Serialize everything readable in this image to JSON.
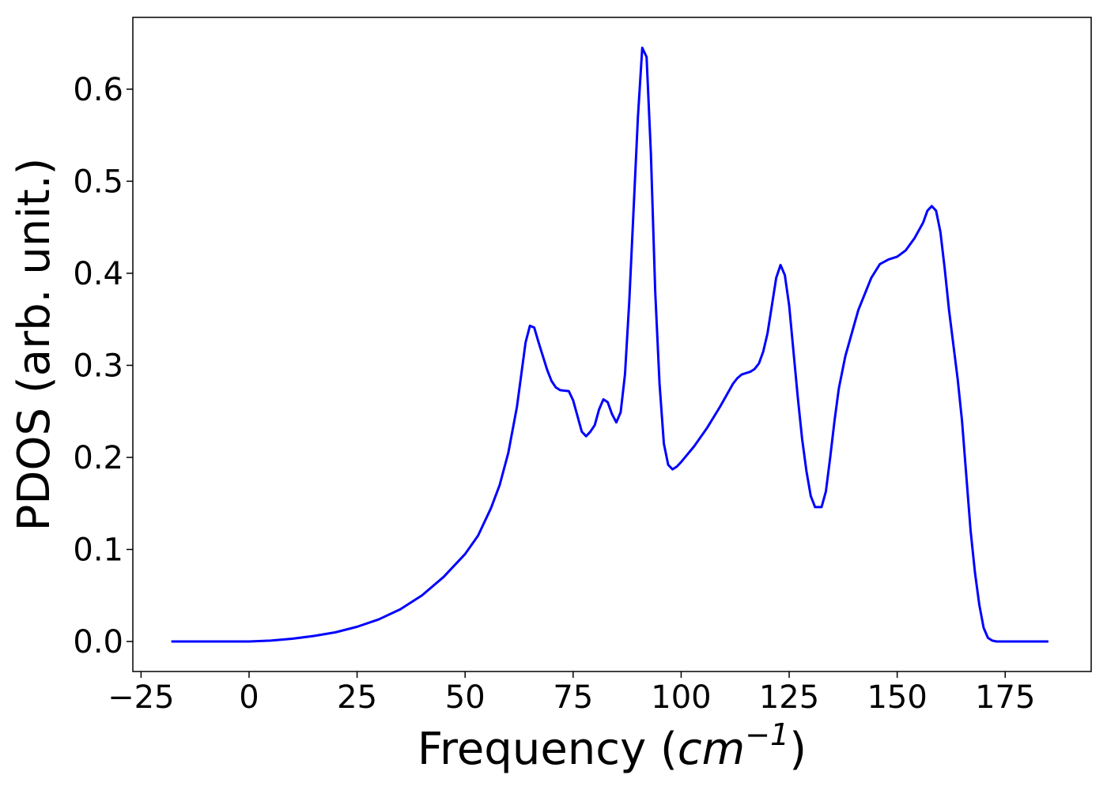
{
  "chart_data": {
    "type": "line",
    "xlabel": [
      "Frequency (",
      "cm",
      "−1",
      ")"
    ],
    "ylabel": "PDOS (arb. unit.)",
    "x": [
      -18,
      0,
      5,
      10,
      15,
      20,
      25,
      30,
      35,
      40,
      45,
      50,
      53,
      56,
      58,
      60,
      62,
      63,
      64,
      65,
      66,
      67,
      68,
      69,
      70,
      71,
      72,
      74,
      75,
      76,
      77,
      78,
      79,
      80,
      81,
      82,
      83,
      84,
      85,
      86,
      87,
      88,
      89,
      90,
      91,
      92,
      93,
      94,
      95,
      96,
      97,
      98,
      99,
      100,
      103,
      106,
      109,
      112,
      113,
      114,
      116,
      117,
      118,
      119,
      120,
      121,
      122,
      123,
      124,
      125,
      126,
      127,
      128,
      129,
      130,
      131,
      132.5,
      133.5,
      134.5,
      135.5,
      136.5,
      138,
      141,
      144,
      146,
      148,
      150,
      152,
      154,
      156,
      157,
      158,
      159,
      160,
      161,
      162,
      164,
      165,
      166,
      167,
      168,
      169,
      170,
      171,
      172,
      173,
      185
    ],
    "series": [
      {
        "name": "PDOS",
        "color": "#0000ff",
        "values": [
          0,
          0,
          0.001,
          0.003,
          0.006,
          0.01,
          0.016,
          0.024,
          0.035,
          0.05,
          0.07,
          0.095,
          0.115,
          0.145,
          0.17,
          0.205,
          0.255,
          0.29,
          0.325,
          0.343,
          0.341,
          0.325,
          0.31,
          0.295,
          0.283,
          0.276,
          0.273,
          0.272,
          0.262,
          0.245,
          0.228,
          0.223,
          0.228,
          0.235,
          0.252,
          0.263,
          0.26,
          0.247,
          0.238,
          0.249,
          0.29,
          0.37,
          0.47,
          0.57,
          0.645,
          0.635,
          0.53,
          0.38,
          0.28,
          0.215,
          0.192,
          0.187,
          0.19,
          0.195,
          0.212,
          0.232,
          0.255,
          0.28,
          0.286,
          0.29,
          0.293,
          0.296,
          0.302,
          0.315,
          0.335,
          0.365,
          0.395,
          0.409,
          0.398,
          0.365,
          0.315,
          0.265,
          0.22,
          0.185,
          0.158,
          0.146,
          0.146,
          0.163,
          0.2,
          0.24,
          0.275,
          0.31,
          0.36,
          0.395,
          0.41,
          0.415,
          0.418,
          0.425,
          0.438,
          0.455,
          0.468,
          0.473,
          0.468,
          0.445,
          0.405,
          0.36,
          0.285,
          0.24,
          0.18,
          0.12,
          0.075,
          0.04,
          0.015,
          0.004,
          0.001,
          0,
          0
        ]
      }
    ],
    "xlim": [
      -26.9,
      194.9
    ],
    "ylim": [
      -0.0326,
      0.678
    ],
    "xticks": [
      {
        "value": -25,
        "label": "−25"
      },
      0,
      25,
      50,
      75,
      100,
      125,
      150,
      175
    ],
    "yticks": [
      {
        "value": 0,
        "label": "0.0"
      },
      0.1,
      0.2,
      0.3,
      0.4,
      0.5,
      0.6
    ],
    "grid": false
  }
}
